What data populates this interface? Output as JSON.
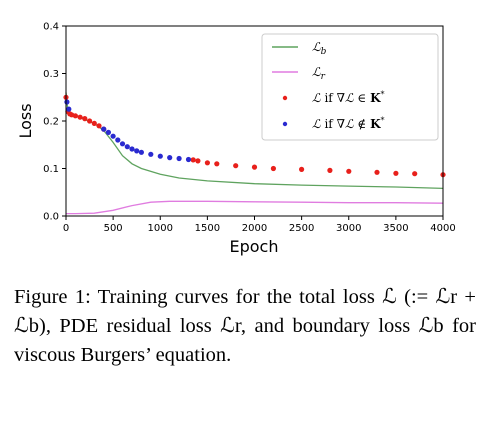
{
  "chart_data": {
    "type": "line",
    "xlabel": "Epoch",
    "ylabel": "Loss",
    "xlim": [
      0,
      4000
    ],
    "ylim": [
      0,
      0.4
    ],
    "xticks": [
      "0",
      "500",
      "1000",
      "1500",
      "2000",
      "2500",
      "3000",
      "3500",
      "4000"
    ],
    "yticks": [
      "0.0",
      "0.1",
      "0.2",
      "0.3",
      "0.4"
    ],
    "grid": false,
    "legend_position": "top-right",
    "series": [
      {
        "name": "ℒ_b",
        "style": "line",
        "color": "#5fa35f",
        "x": [
          0,
          20,
          60,
          150,
          300,
          400,
          500,
          600,
          700,
          800,
          1000,
          1200,
          1500,
          2000,
          2500,
          3000,
          3500,
          4000
        ],
        "y": [
          0.26,
          0.22,
          0.215,
          0.207,
          0.195,
          0.18,
          0.155,
          0.127,
          0.11,
          0.1,
          0.088,
          0.08,
          0.074,
          0.068,
          0.065,
          0.063,
          0.061,
          0.058
        ]
      },
      {
        "name": "ℒ_r",
        "style": "line",
        "color": "#e07ce0",
        "x": [
          0,
          100,
          300,
          500,
          700,
          900,
          1100,
          1300,
          1500,
          2000,
          2500,
          3000,
          3500,
          4000
        ],
        "y": [
          0.005,
          0.005,
          0.006,
          0.012,
          0.022,
          0.029,
          0.031,
          0.031,
          0.031,
          0.03,
          0.029,
          0.028,
          0.028,
          0.027
        ]
      },
      {
        "name": "ℒ if ∇ℒ ∈ K*",
        "style": "points",
        "color": "#e8201b",
        "x": [
          0,
          20,
          40,
          60,
          100,
          150,
          200,
          250,
          300,
          350,
          400,
          1350,
          1400,
          1500,
          1600,
          1800,
          2000,
          2200,
          2500,
          2800,
          3000,
          3300,
          3500,
          3700,
          4000
        ],
        "y": [
          0.25,
          0.22,
          0.215,
          0.213,
          0.211,
          0.208,
          0.205,
          0.2,
          0.195,
          0.19,
          0.183,
          0.118,
          0.116,
          0.112,
          0.11,
          0.106,
          0.103,
          0.1,
          0.098,
          0.096,
          0.094,
          0.092,
          0.09,
          0.089,
          0.087
        ]
      },
      {
        "name": "ℒ if ∇ℒ ∉ K*",
        "style": "points",
        "color": "#2a2ad0",
        "x": [
          10,
          30,
          400,
          450,
          500,
          550,
          600,
          650,
          700,
          750,
          800,
          900,
          1000,
          1100,
          1200,
          1300
        ],
        "y": [
          0.24,
          0.225,
          0.183,
          0.176,
          0.168,
          0.16,
          0.152,
          0.146,
          0.141,
          0.137,
          0.134,
          0.13,
          0.126,
          0.123,
          0.121,
          0.119
        ]
      }
    ]
  },
  "caption": {
    "text": "Figure 1: Training curves for the total loss ℒ (:= ℒr + ℒb), PDE residual loss ℒr, and boundary loss ℒb for viscous Burgers’ equation."
  }
}
